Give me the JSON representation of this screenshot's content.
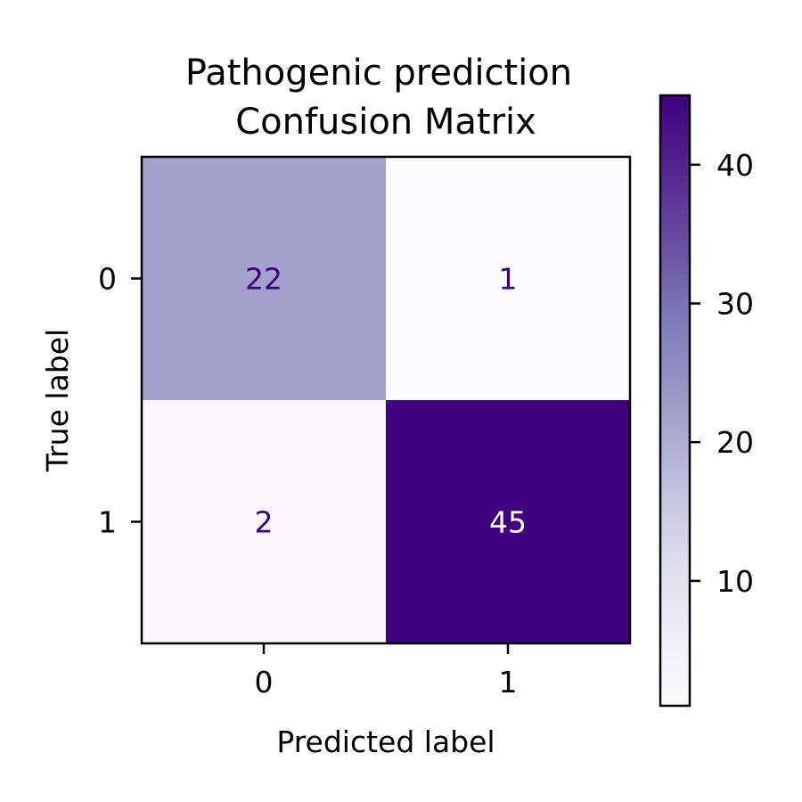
{
  "chart_data": {
    "type": "heatmap",
    "title_lines": [
      "Pathogenic prediction",
      "Confusion Matrix"
    ],
    "xlabel": "Predicted label",
    "ylabel": "True label",
    "x_categories": [
      "0",
      "1"
    ],
    "y_categories": [
      "0",
      "1"
    ],
    "matrix": [
      [
        22,
        1
      ],
      [
        2,
        45
      ]
    ],
    "colormap": "Purples",
    "colorbar": {
      "min": 1,
      "max": 45,
      "ticks": [
        10,
        20,
        30,
        40
      ],
      "tick_labels": [
        "10",
        "20",
        "30",
        "40"
      ]
    },
    "colors": {
      "low": "#fcfbfd",
      "high": "#3f007d",
      "dark_text": "#3f007d",
      "light_text": "#ffffff"
    }
  }
}
